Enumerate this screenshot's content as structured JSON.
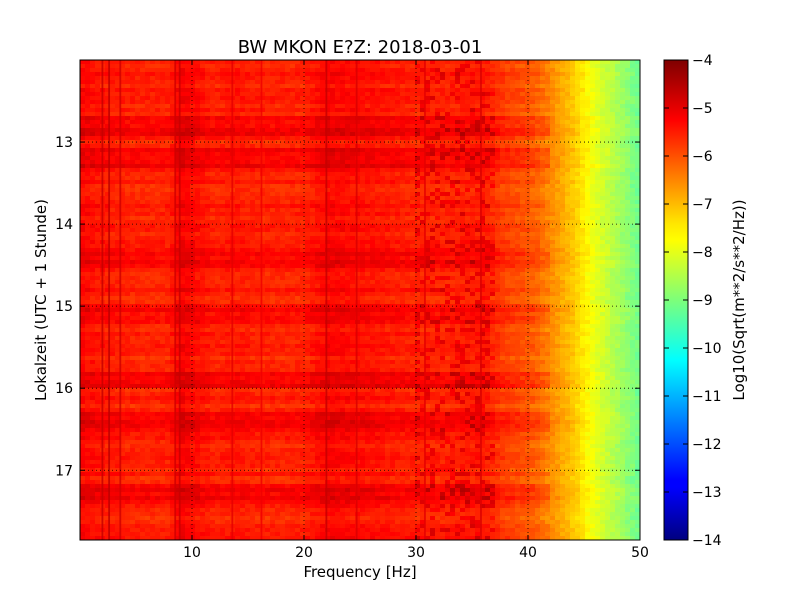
{
  "chart_data": {
    "type": "heatmap",
    "title": "BW MKON E?Z: 2018-03-01",
    "xlabel": "Frequency [Hz]",
    "ylabel": "Lokalzeit (UTC + 1 Stunde)",
    "colorbar_label": "Log10(Sqrt(m**2/s**2/Hz))",
    "xlim": [
      0,
      50
    ],
    "ylim": [
      12.0,
      17.85
    ],
    "y_inverted": true,
    "x_ticks": [
      10,
      20,
      30,
      40,
      50
    ],
    "x_tick_labels": [
      "10",
      "20",
      "30",
      "40",
      "50"
    ],
    "y_ticks": [
      13,
      14,
      15,
      16,
      17
    ],
    "y_tick_labels": [
      "13",
      "14",
      "15",
      "16",
      "17"
    ],
    "color_range": [
      -14,
      -4
    ],
    "colorbar_ticks": [
      -4,
      -5,
      -6,
      -7,
      -8,
      -9,
      -10,
      -11,
      -12,
      -13,
      -14
    ],
    "colorbar_tick_labels": [
      "−4",
      "−5",
      "−6",
      "−7",
      "−8",
      "−9",
      "−10",
      "−11",
      "−12",
      "−13",
      "−14"
    ],
    "colormap": "jet",
    "grid": "dotted",
    "profile": {
      "frequency": [
        0,
        2,
        5,
        8,
        9,
        12,
        14,
        16,
        20,
        22,
        25,
        30,
        33,
        36,
        38,
        40,
        41,
        42,
        43,
        44,
        45,
        46,
        47,
        48,
        49,
        50
      ],
      "value": [
        -5.3,
        -5.5,
        -5.6,
        -5.6,
        -5.2,
        -5.6,
        -5.5,
        -5.6,
        -5.6,
        -5.3,
        -5.4,
        -5.6,
        -5.6,
        -5.5,
        -5.9,
        -6.1,
        -6.3,
        -6.6,
        -6.9,
        -7.2,
        -7.6,
        -8.0,
        -8.3,
        -8.6,
        -8.9,
        -9.2
      ]
    },
    "vertical_lines": [
      {
        "x": 2.0,
        "value": -4.7
      },
      {
        "x": 2.6,
        "value": -4.6
      },
      {
        "x": 3.6,
        "value": -4.8
      },
      {
        "x": 8.5,
        "value": -4.8
      },
      {
        "x": 8.9,
        "value": -4.7
      },
      {
        "x": 13.6,
        "value": -5.0
      },
      {
        "x": 16.2,
        "value": -5.1
      },
      {
        "x": 22.0,
        "value": -4.7
      },
      {
        "x": 24.7,
        "value": -4.9
      },
      {
        "x": 30.8,
        "value": -5.0
      },
      {
        "x": 35.8,
        "value": -4.9
      }
    ],
    "darker_time_bands": [
      12.8,
      13.2,
      14.4,
      15.1,
      15.9,
      16.4,
      17.3
    ]
  }
}
